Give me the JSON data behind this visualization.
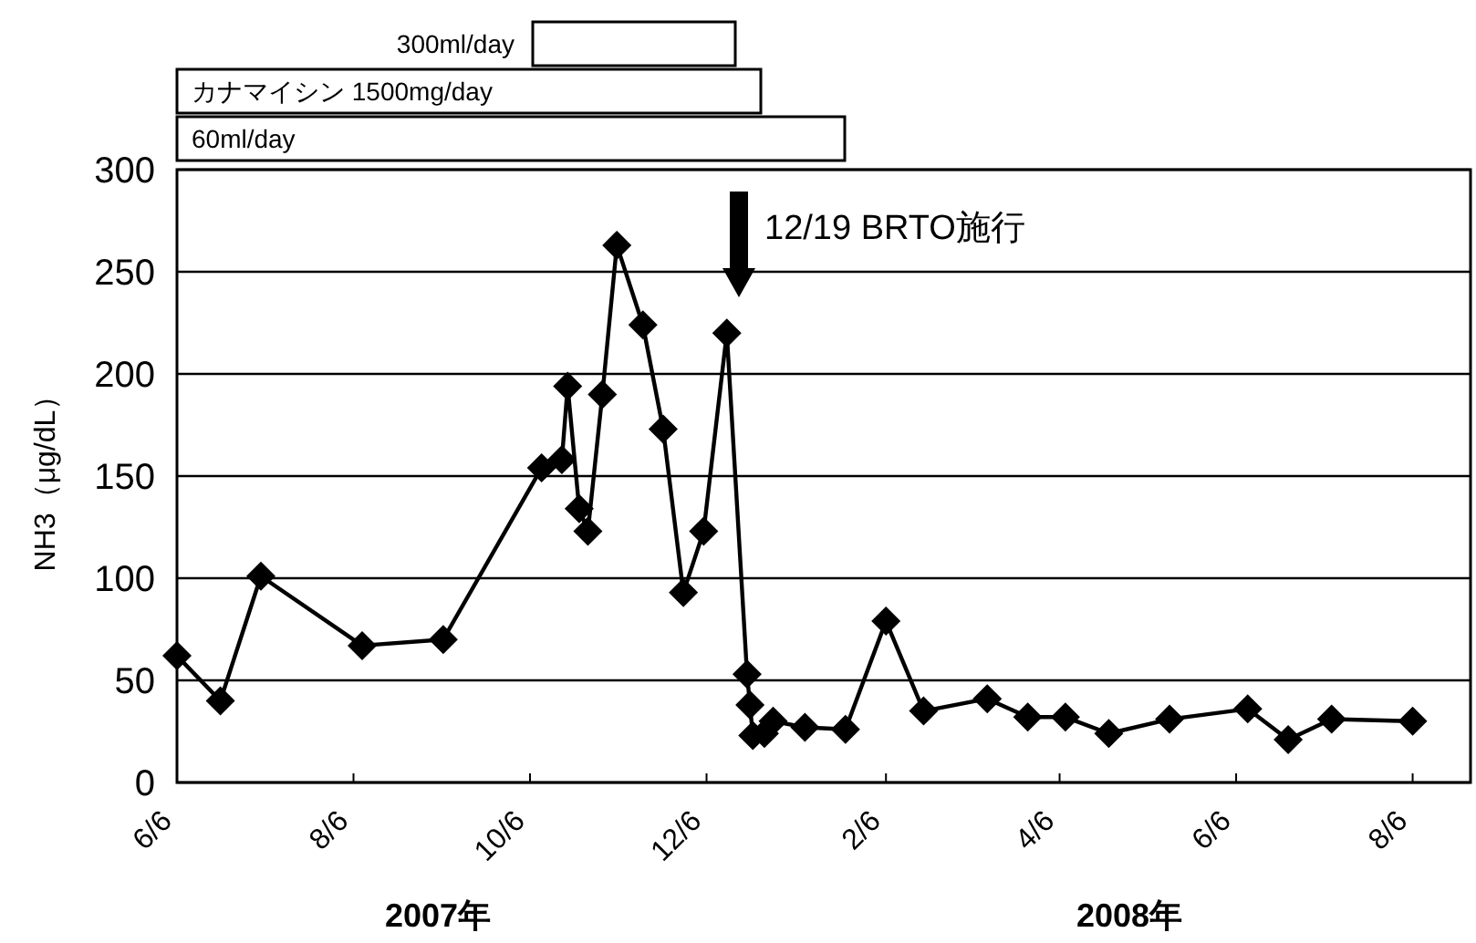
{
  "chart_data": {
    "type": "line",
    "ylabel": "NH3（μg/dL）",
    "x": [
      "2007-06-06",
      "2007-06-21",
      "2007-07-05",
      "2007-08-09",
      "2007-09-06",
      "2007-10-10",
      "2007-10-17",
      "2007-10-19",
      "2007-10-23",
      "2007-10-26",
      "2007-10-31",
      "2007-11-05",
      "2007-11-14",
      "2007-11-21",
      "2007-11-28",
      "2007-12-05",
      "2007-12-13",
      "2007-12-20",
      "2007-12-21",
      "2007-12-22",
      "2007-12-26",
      "2007-12-29",
      "2008-01-09",
      "2008-01-23",
      "2008-02-06",
      "2008-02-19",
      "2008-03-12",
      "2008-03-26",
      "2008-04-08",
      "2008-04-23",
      "2008-05-14",
      "2008-06-10",
      "2008-06-24",
      "2008-07-09",
      "2008-08-06"
    ],
    "series": [
      {
        "color": "#000000",
        "values": [
          62,
          40,
          101,
          67,
          70,
          154,
          158,
          194,
          134,
          123,
          190,
          263,
          224,
          173,
          93,
          123,
          220,
          53,
          38,
          23,
          24,
          30,
          27,
          26,
          79,
          35,
          41,
          32,
          32,
          24,
          31,
          36,
          21,
          31,
          30
        ]
      }
    ],
    "marker": "diamond",
    "line_style": "solid",
    "grid": "y",
    "xlim": [
      "2007-06-06",
      "2008-08-26"
    ],
    "xticks": [
      {
        "value": "2007-06-06",
        "label": "6/6"
      },
      {
        "value": "2007-08-06",
        "label": "8/6"
      },
      {
        "value": "2007-10-06",
        "label": "10/6"
      },
      {
        "value": "2007-12-06",
        "label": "12/6"
      },
      {
        "value": "2008-02-06",
        "label": "2/6"
      },
      {
        "value": "2008-04-06",
        "label": "4/6"
      },
      {
        "value": "2008-06-06",
        "label": "6/6"
      },
      {
        "value": "2008-08-06",
        "label": "8/6"
      }
    ],
    "ylim": [
      0,
      300
    ],
    "yticks": [
      0,
      50,
      100,
      150,
      200,
      250,
      300
    ],
    "annotations": [
      "12/19 BRTO施行",
      "300ml/day",
      "カナマイシン 1500mg/day",
      "60ml/day",
      "2007年",
      "2008年"
    ]
  }
}
